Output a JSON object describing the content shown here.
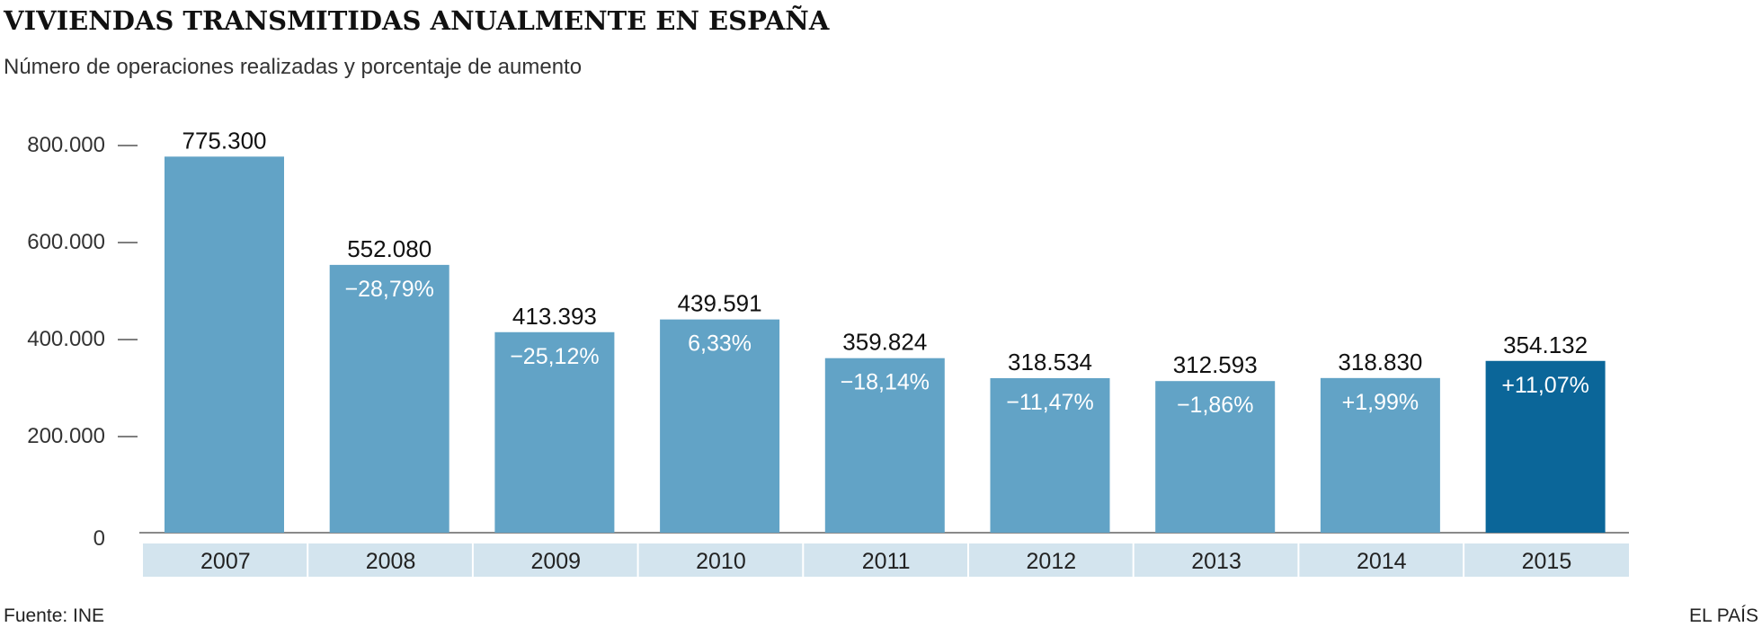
{
  "chart_data": {
    "type": "bar",
    "title": "VIVIENDAS TRANSMITIDAS ANUALMENTE EN ESPAÑA",
    "subtitle": "Número de operaciones realizadas y porcentaje de aumento",
    "categories": [
      "2007",
      "2008",
      "2009",
      "2010",
      "2011",
      "2012",
      "2013",
      "2014",
      "2015"
    ],
    "values": [
      775300,
      552080,
      413393,
      439591,
      359824,
      318534,
      312593,
      318830,
      354132
    ],
    "value_labels": [
      "775.300",
      "552.080",
      "413.393",
      "439.591",
      "359.824",
      "318.534",
      "312.593",
      "318.830",
      "354.132"
    ],
    "pct_labels": [
      "",
      "−28,79%",
      "−25,12%",
      "6,33%",
      "−18,14%",
      "−11,47%",
      "−1,86%",
      "+1,99%",
      "+11,07%"
    ],
    "yticks": [
      0,
      200000,
      400000,
      600000,
      800000
    ],
    "ytick_labels": [
      "0",
      "200.000",
      "400.000",
      "600.000",
      "800.000"
    ],
    "ylim": [
      0,
      800000
    ],
    "xlabel": "",
    "ylabel": "",
    "colors": {
      "bar": "#62a3c6",
      "highlight": "#0b6699",
      "year_band": "#d3e4ee"
    },
    "highlight_index": 8
  },
  "footer": {
    "source": "Fuente: INE",
    "brand": "EL PAÍS"
  }
}
